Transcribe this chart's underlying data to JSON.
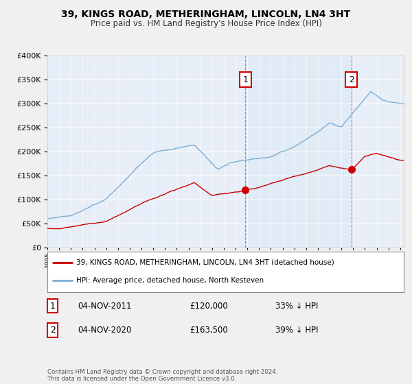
{
  "title": "39, KINGS ROAD, METHERINGHAM, LINCOLN, LN4 3HT",
  "subtitle": "Price paid vs. HM Land Registry's House Price Index (HPI)",
  "legend_red": "39, KINGS ROAD, METHERINGHAM, LINCOLN, LN4 3HT (detached house)",
  "legend_blue": "HPI: Average price, detached house, North Kesteven",
  "annotation1_label": "1",
  "annotation1_date": "04-NOV-2011",
  "annotation1_price": "£120,000",
  "annotation1_pct": "33% ↓ HPI",
  "annotation1_year": 2011.84,
  "annotation1_price_val": 120000,
  "annotation2_label": "2",
  "annotation2_date": "04-NOV-2020",
  "annotation2_price": "£163,500",
  "annotation2_pct": "39% ↓ HPI",
  "annotation2_year": 2020.84,
  "annotation2_price_val": 163500,
  "footnote": "Contains HM Land Registry data © Crown copyright and database right 2024.\nThis data is licensed under the Open Government Licence v3.0.",
  "red_color": "#cc0000",
  "blue_color": "#7aadd4",
  "background_color": "#f0f0f0",
  "plot_bg": "#e8eef8",
  "ylim": [
    0,
    400000
  ],
  "xlim_start": 1995,
  "xlim_end": 2025.3
}
